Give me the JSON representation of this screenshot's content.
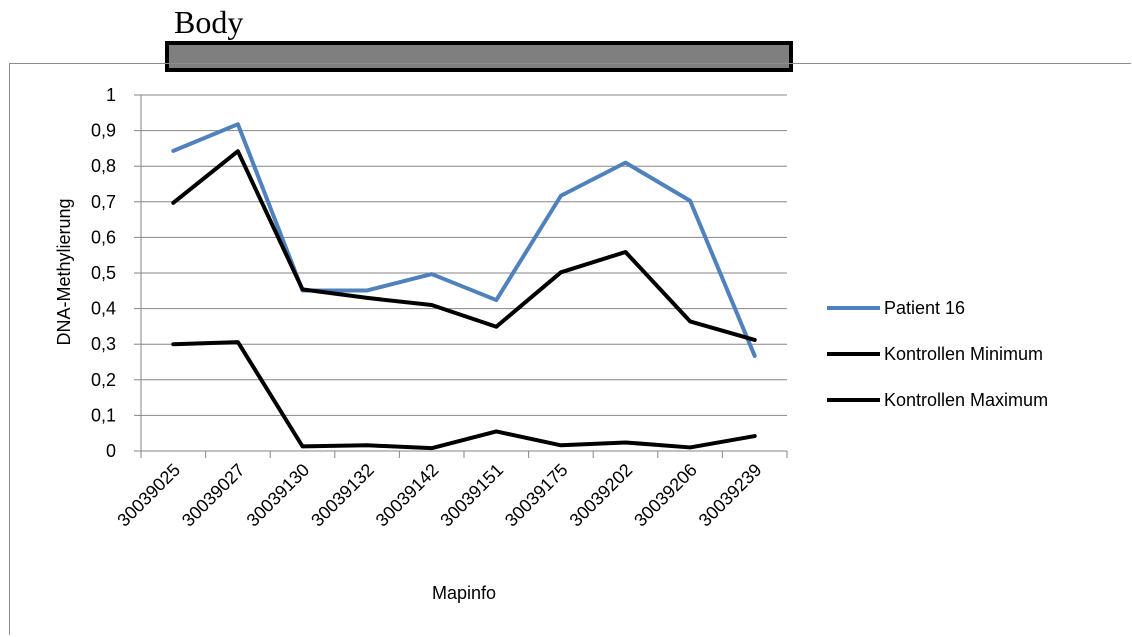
{
  "banner": {
    "label": "Body"
  },
  "chart_data": {
    "type": "line",
    "title": "",
    "xlabel": "Mapinfo",
    "ylabel": "DNA-Methylierung",
    "ylim": [
      0,
      1
    ],
    "yticks": [
      "0",
      "0,1",
      "0,2",
      "0,3",
      "0,4",
      "0,5",
      "0,6",
      "0,7",
      "0,8",
      "0,9",
      "1"
    ],
    "categories": [
      "30039025",
      "30039027",
      "30039130",
      "30039132",
      "30039142",
      "30039151",
      "30039175",
      "30039202",
      "30039206",
      "30039239"
    ],
    "grid": true,
    "legend_position": "right",
    "series": [
      {
        "name": "Patient 16",
        "color": "#4f81bd",
        "values": [
          0.843,
          0.918,
          0.451,
          0.451,
          0.497,
          0.424,
          0.717,
          0.81,
          0.703,
          0.267
        ]
      },
      {
        "name": "Kontrollen Minimum",
        "color": "#000000",
        "values": [
          0.3,
          0.306,
          0.013,
          0.016,
          0.008,
          0.055,
          0.016,
          0.024,
          0.01,
          0.042
        ]
      },
      {
        "name": "Kontrollen Maximum",
        "color": "#000000",
        "values": [
          0.697,
          0.842,
          0.454,
          0.43,
          0.41,
          0.349,
          0.502,
          0.559,
          0.364,
          0.312
        ]
      }
    ]
  }
}
